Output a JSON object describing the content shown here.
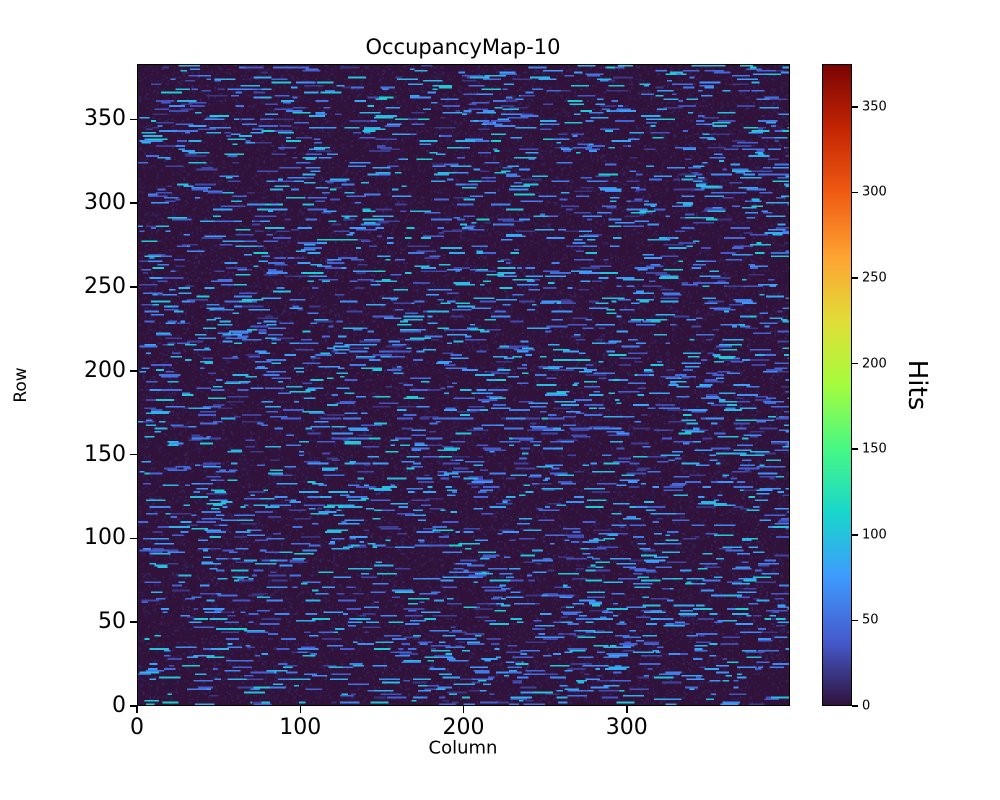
{
  "figure": {
    "background": "#ffffff",
    "text_color": "#000000"
  },
  "chart_data": {
    "type": "heatmap",
    "title": "OccupancyMap-10",
    "xlabel": "Column",
    "ylabel": "Row",
    "colorbar_label": "Hits",
    "xlim": [
      0,
      400
    ],
    "ylim": [
      0,
      383
    ],
    "xticks": [
      0,
      100,
      200,
      300
    ],
    "yticks": [
      0,
      50,
      100,
      150,
      200,
      250,
      300,
      350
    ],
    "colorbar_ticks": [
      0,
      50,
      100,
      150,
      200,
      250,
      300,
      350
    ],
    "vmin": 0,
    "vmax": 375,
    "colormap": "turbo",
    "colormap_stops": [
      [
        0.0,
        "#30123b"
      ],
      [
        0.1,
        "#455bcd"
      ],
      [
        0.2,
        "#3e9bfe"
      ],
      [
        0.3,
        "#18d6cb"
      ],
      [
        0.4,
        "#46f884"
      ],
      [
        0.5,
        "#a4fc3c"
      ],
      [
        0.6,
        "#e1dd37"
      ],
      [
        0.7,
        "#fea332"
      ],
      [
        0.8,
        "#f05b12"
      ],
      [
        0.9,
        "#c42503"
      ],
      [
        1.0,
        "#7a0403"
      ]
    ],
    "grid": {
      "cols": 400,
      "rows": 383
    },
    "pattern": {
      "description": "Sparse short horizontal runs of low hit counts (blue, ~15-110 hits) scattered over a near-zero (dark) background occupancy map",
      "seed": 10,
      "dash_count": 3400,
      "dash_length_range": [
        3,
        14
      ],
      "dash_value_range": [
        15,
        110
      ],
      "noise_count": 30000,
      "noise_value_range": [
        0,
        10
      ]
    }
  }
}
